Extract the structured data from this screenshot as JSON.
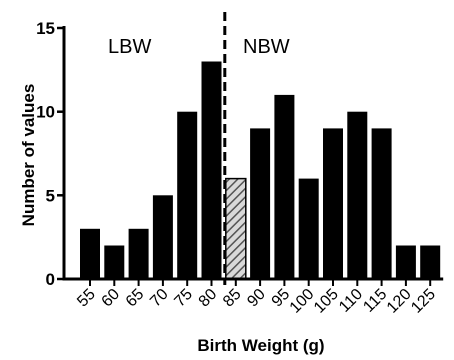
{
  "chart_data": {
    "type": "bar",
    "title": "",
    "xlabel": "Birth Weight (g)",
    "ylabel": "Number of values",
    "categories": [
      "55",
      "60",
      "65",
      "70",
      "75",
      "80",
      "85",
      "90",
      "95",
      "100",
      "105",
      "110",
      "115",
      "120",
      "125"
    ],
    "values": [
      3,
      2,
      3,
      5,
      10,
      13,
      6,
      9,
      11,
      6,
      9,
      10,
      9,
      2,
      2
    ],
    "highlighted_category": "85",
    "ylim": [
      0,
      15
    ],
    "yticks": [
      "0",
      "5",
      "10",
      "15"
    ],
    "grid": false,
    "legend": "none",
    "annotations": {
      "left_region_label": "LBW",
      "right_region_label": "NBW",
      "divider_style": "dashed vertical line at 85"
    },
    "colors": {
      "bar_fill": "#000000",
      "highlight_stripe": "#555555",
      "highlight_background": "#d9d9d9",
      "axis": "#000000"
    }
  }
}
